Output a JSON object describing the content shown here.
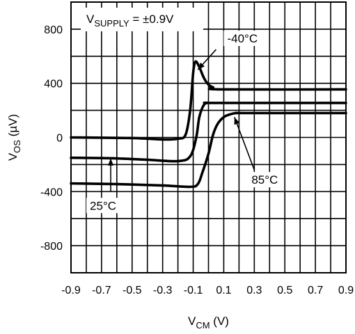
{
  "chart_data": {
    "type": "line",
    "xlabel": {
      "main": "V",
      "sub": "CM",
      "unit": " (V)"
    },
    "ylabel": {
      "main": "V",
      "sub": "OS",
      "unit": " (µV)"
    },
    "xlim": [
      -0.9,
      0.9
    ],
    "ylim": [
      -1000,
      1000
    ],
    "x_ticks": [
      -0.9,
      -0.7,
      -0.5,
      -0.3,
      -0.1,
      0.1,
      0.3,
      0.5,
      0.7,
      0.9
    ],
    "x_tick_labels": [
      "-0.9",
      "-0.7",
      "-0.5",
      "-0.3",
      "-0.1",
      "0.1",
      "0.3",
      "0.5",
      "0.7",
      "0.9"
    ],
    "y_ticks": [
      -800,
      -400,
      0,
      400,
      800
    ],
    "y_tick_labels": [
      "-800",
      "-400",
      "0",
      "400",
      "800"
    ],
    "grid": true,
    "annotation_supply": {
      "main": "V",
      "sub": "SUPPLY",
      "rest": " = ±0.9V"
    },
    "series": [
      {
        "label": "-40°C",
        "x": [
          -0.9,
          -0.5,
          -0.3,
          -0.2,
          -0.15,
          -0.12,
          -0.1,
          -0.085,
          -0.06,
          -0.03,
          0.0,
          0.03,
          0.08,
          0.9
        ],
        "y": [
          0,
          -5,
          -15,
          -10,
          20,
          200,
          480,
          560,
          520,
          440,
          390,
          370,
          355,
          355
        ]
      },
      {
        "label": "25°C",
        "x": [
          -0.9,
          -0.6,
          -0.4,
          -0.2,
          -0.12,
          -0.08,
          -0.06,
          -0.03,
          0.0,
          0.05,
          0.9
        ],
        "y": [
          -150,
          -155,
          -165,
          -175,
          -140,
          0,
          150,
          240,
          255,
          255,
          255
        ]
      },
      {
        "label": "85°C",
        "x": [
          -0.9,
          -0.6,
          -0.3,
          -0.12,
          -0.07,
          -0.04,
          0.0,
          0.03,
          0.06,
          0.1,
          0.14,
          0.18,
          0.25,
          0.9
        ],
        "y": [
          -340,
          -345,
          -355,
          -365,
          -345,
          -260,
          -120,
          20,
          100,
          150,
          170,
          180,
          180,
          180
        ]
      }
    ],
    "callouts": [
      {
        "text": "-40°C",
        "tip": [
          -0.07,
          500
        ],
        "tail": [
          0.05,
          650
        ]
      },
      {
        "text": "85°C",
        "tip": [
          0.17,
          150
        ],
        "tail": [
          0.3,
          -240
        ]
      },
      {
        "text": "25°C",
        "tip": [
          -0.64,
          -155
        ],
        "tail": [
          -0.64,
          -400
        ]
      }
    ]
  }
}
